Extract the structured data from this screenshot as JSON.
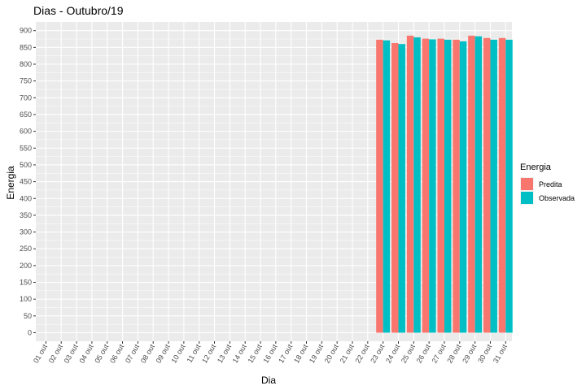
{
  "chart_data": {
    "type": "bar",
    "title": "Dias - Outubro/19",
    "xlabel": "Dia",
    "ylabel": "Energia",
    "ylim": [
      0,
      900
    ],
    "yticks": [
      0,
      50,
      100,
      150,
      200,
      250,
      300,
      350,
      400,
      450,
      500,
      550,
      600,
      650,
      700,
      750,
      800,
      850,
      900
    ],
    "categories": [
      "01 out",
      "02 out",
      "03 out",
      "04 out",
      "05 out",
      "06 out",
      "07 out",
      "08 out",
      "09 out",
      "10 out",
      "11 out",
      "12 out",
      "13 out",
      "14 out",
      "15 out",
      "16 out",
      "17 out",
      "18 out",
      "19 out",
      "20 out",
      "21 out",
      "22 out",
      "23 out",
      "24 out",
      "25 out",
      "26 out",
      "27 out",
      "28 out",
      "29 out",
      "30 out",
      "31 out"
    ],
    "series": [
      {
        "name": "Predita",
        "color": "#F8766D",
        "values": [
          null,
          null,
          null,
          null,
          null,
          null,
          null,
          null,
          null,
          null,
          null,
          null,
          null,
          null,
          null,
          null,
          null,
          null,
          null,
          null,
          null,
          null,
          873,
          863,
          885,
          876,
          876,
          873,
          885,
          878,
          878
        ]
      },
      {
        "name": "Observada",
        "color": "#00BFC4",
        "values": [
          null,
          null,
          null,
          null,
          null,
          null,
          null,
          null,
          null,
          null,
          null,
          null,
          null,
          null,
          null,
          null,
          null,
          null,
          null,
          null,
          null,
          null,
          871,
          860,
          880,
          874,
          873,
          868,
          883,
          873,
          873
        ]
      }
    ],
    "grid": true,
    "legend": {
      "title": "Energia",
      "position": "right"
    },
    "panel_background": "#EBEBEB",
    "grid_color": "#FFFFFF"
  }
}
